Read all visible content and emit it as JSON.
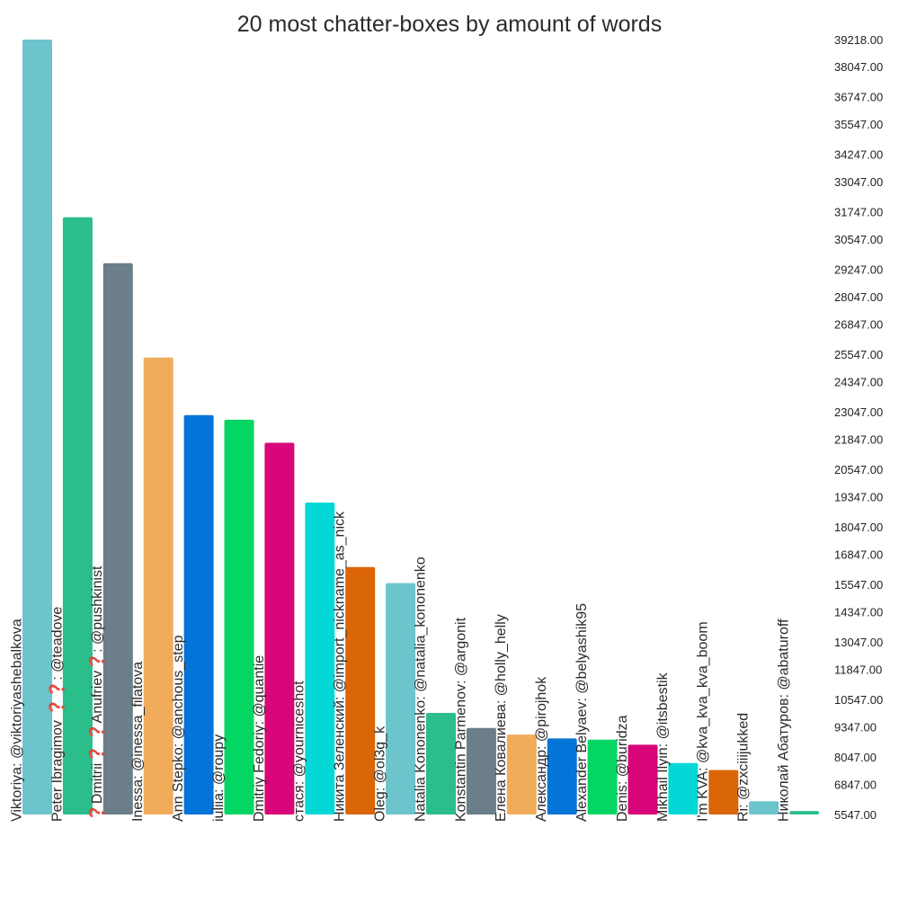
{
  "chart_data": {
    "type": "bar",
    "title": "20 most chatter-boxes by amount of words",
    "xlabel": "",
    "ylabel": "",
    "grid": false,
    "ylim": [
      5547,
      39218
    ],
    "y_ticks": [
      "39218.00",
      "38047.00",
      "36747.00",
      "35547.00",
      "34247.00",
      "33047.00",
      "31747.00",
      "30547.00",
      "29247.00",
      "28047.00",
      "26847.00",
      "25547.00",
      "24347.00",
      "23047.00",
      "21847.00",
      "20547.00",
      "19347.00",
      "18047.00",
      "16847.00",
      "15547.00",
      "14347.00",
      "13047.00",
      "11847.00",
      "10547.00",
      "9347.00",
      "8047.00",
      "6847.00",
      "5547.00"
    ],
    "categories": [
      "Viktoriya: @viktoriyashebalkova",
      "Peter Ibragimov ❓❓: @teadove",
      "❓Dmitrii❓ ❓Anufriev❓: @pushkinist",
      "Inessa: @inessa_filatova",
      "Ann Stepko: @anchous_step",
      "iuliia: @roupy",
      "Dmitriy Fedoriy: @quantie",
      "стася: @yourniceshot",
      "Никита Зеленский: @import_nickname_as_nick",
      "Oleg: @ol3g_k",
      "Natalia Kononenko: @natalia_kononenko",
      "Konstantin Parmenov: @argonit",
      "Елена Ковалиева: @holly_helly",
      "Александр: @pirojhok",
      "Alexander Belyaev: @belyashik95",
      "Denis: @buridza",
      "Mikhail Ilyin: @itsbestik",
      "I'm KVA: @kva_kva_kva_boom",
      "Ri: @zxciiijukked",
      "Николай Абатуров: @abaturoff"
    ],
    "values": [
      39218,
      31500,
      29500,
      25400,
      22900,
      22700,
      21700,
      19100,
      16300,
      15600,
      9960,
      9310,
      9020,
      8850,
      8800,
      8580,
      7780,
      7480,
      6120,
      5700
    ],
    "colors": [
      "#6cc4cc",
      "#2bbd8a",
      "#6b7e89",
      "#f0ab5b",
      "#0574d8",
      "#04d664",
      "#d8067a",
      "#04d8d6",
      "#db6607",
      "#6cc4cc",
      "#2bbd8a",
      "#6b7e89",
      "#f0ab5b",
      "#0574d8",
      "#04d664",
      "#d8067a",
      "#04d8d6",
      "#db6607",
      "#6cc4cc",
      "#2bbd8a"
    ]
  }
}
